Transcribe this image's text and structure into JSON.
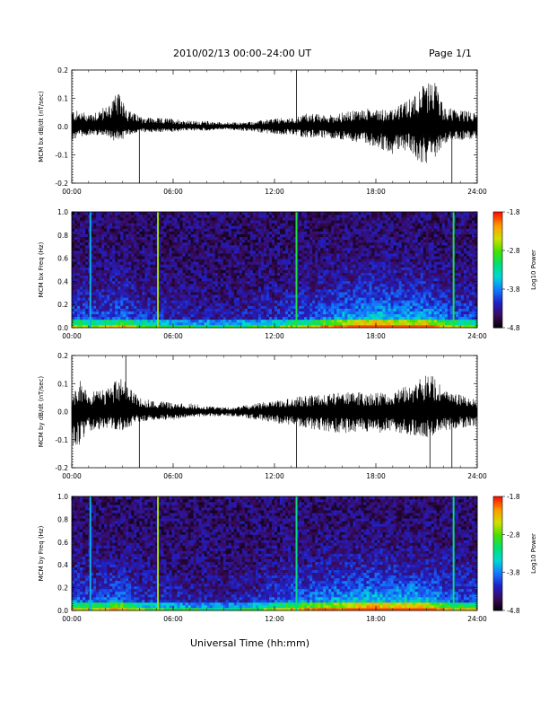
{
  "header": {
    "title": "2010/02/13  00:00–24:00 UT",
    "page": "Page 1/1"
  },
  "footer": {
    "xlabel": "Universal Time (hh:mm)"
  },
  "colors": {
    "trace": "#000000",
    "colorbar_stops": [
      "#000000",
      "#3a0a5a",
      "#2020c8",
      "#1478ff",
      "#00d7d7",
      "#00e070",
      "#48e000",
      "#d0e000",
      "#ff9a00",
      "#ff1000"
    ]
  },
  "chart_data": [
    {
      "type": "line",
      "ylabel": "MCM bx dB/dt (nT/sec)",
      "xticks": [
        "00:00",
        "06:00",
        "12:00",
        "18:00",
        "24:00"
      ],
      "xlim": [
        0,
        24
      ],
      "ylim": [
        -0.2,
        0.2
      ],
      "yticks": [
        "-0.2",
        "-0.1",
        "0.0",
        "0.1",
        "0.2"
      ],
      "envelope": {
        "x": [
          0,
          1,
          2,
          2.5,
          3,
          3.3,
          4,
          5,
          6,
          7,
          8,
          9,
          10,
          11,
          12,
          13,
          14,
          15,
          16,
          17,
          18,
          19,
          20,
          20.5,
          21,
          21.5,
          22,
          23,
          24
        ],
        "upper": [
          0.06,
          0.05,
          0.07,
          0.11,
          0.12,
          0.06,
          0.04,
          0.03,
          0.03,
          0.02,
          0.02,
          0.015,
          0.015,
          0.02,
          0.03,
          0.03,
          0.05,
          0.04,
          0.05,
          0.06,
          0.07,
          0.06,
          0.1,
          0.14,
          0.15,
          0.17,
          0.07,
          0.06,
          0.05
        ],
        "lower": [
          -0.05,
          -0.03,
          -0.03,
          -0.05,
          -0.05,
          -0.03,
          -0.02,
          -0.02,
          -0.02,
          -0.015,
          -0.015,
          -0.01,
          -0.015,
          -0.02,
          -0.03,
          -0.03,
          -0.04,
          -0.04,
          -0.05,
          -0.06,
          -0.07,
          -0.1,
          -0.08,
          -0.12,
          -0.14,
          -0.12,
          -0.06,
          -0.05,
          -0.04
        ]
      },
      "spikes": [
        {
          "x": 4.0,
          "y": -0.2
        },
        {
          "x": 13.3,
          "y": 0.2
        },
        {
          "x": 22.5,
          "y": -0.2
        }
      ]
    },
    {
      "type": "heatmap",
      "ylabel": "MCM bx Freq (Hz)",
      "xticks": [
        "00:00",
        "06:00",
        "12:00",
        "18:00",
        "24:00"
      ],
      "xlim": [
        0,
        24
      ],
      "ylim": [
        0.0,
        1.0
      ],
      "yticks": [
        "0.0",
        "0.2",
        "0.4",
        "0.6",
        "0.8",
        "1.0"
      ],
      "colorbar": {
        "label": "Log10 Power",
        "min": -4.8,
        "max": -1.8,
        "ticks": [
          "-1.8",
          "-2.8",
          "-3.8",
          "-4.8"
        ]
      },
      "stripes": [
        {
          "x": 5.1,
          "level": -2.6
        },
        {
          "x": 13.3,
          "level": -3.0
        },
        {
          "x": 22.6,
          "level": -3.0
        },
        {
          "x": 1.1,
          "level": -3.6
        }
      ],
      "activity": {
        "x": [
          0,
          1,
          2,
          3,
          4,
          5,
          6,
          7,
          8,
          9,
          10,
          11,
          12,
          13,
          14,
          15,
          16,
          17,
          18,
          19,
          20,
          21,
          22,
          23,
          24
        ],
        "level": [
          0.5,
          0.4,
          0.45,
          0.55,
          0.35,
          0.3,
          0.25,
          0.2,
          0.2,
          0.18,
          0.2,
          0.25,
          0.3,
          0.4,
          0.45,
          0.6,
          0.7,
          0.8,
          0.85,
          0.8,
          0.75,
          0.8,
          0.55,
          0.45,
          0.4
        ]
      }
    },
    {
      "type": "line",
      "ylabel": "MCM by dB/dt (nT/sec)",
      "xticks": [
        "00:00",
        "06:00",
        "12:00",
        "18:00",
        "24:00"
      ],
      "xlim": [
        0,
        24
      ],
      "ylim": [
        -0.2,
        0.2
      ],
      "yticks": [
        "-0.2",
        "-0.1",
        "0.0",
        "0.1",
        "0.2"
      ],
      "envelope": {
        "x": [
          0,
          0.5,
          1,
          2,
          3,
          3.3,
          4,
          5,
          6,
          7,
          8,
          9,
          10,
          11,
          12,
          13,
          14,
          15,
          16,
          17,
          18,
          19,
          20,
          21,
          21.5,
          22,
          23,
          24
        ],
        "upper": [
          0.06,
          0.12,
          0.08,
          0.08,
          0.13,
          0.09,
          0.05,
          0.04,
          0.03,
          0.03,
          0.02,
          0.015,
          0.02,
          0.03,
          0.04,
          0.05,
          0.06,
          0.06,
          0.07,
          0.07,
          0.07,
          0.08,
          0.1,
          0.14,
          0.12,
          0.08,
          0.06,
          0.05
        ],
        "lower": [
          -0.14,
          -0.12,
          -0.07,
          -0.06,
          -0.07,
          -0.06,
          -0.04,
          -0.03,
          -0.03,
          -0.02,
          -0.02,
          -0.015,
          -0.02,
          -0.03,
          -0.04,
          -0.05,
          -0.06,
          -0.07,
          -0.08,
          -0.07,
          -0.08,
          -0.07,
          -0.09,
          -0.1,
          -0.08,
          -0.07,
          -0.06,
          -0.05
        ]
      },
      "spikes": [
        {
          "x": 3.2,
          "y": 0.2
        },
        {
          "x": 4.0,
          "y": -0.2
        },
        {
          "x": 13.3,
          "y": -0.2
        },
        {
          "x": 21.2,
          "y": -0.2
        },
        {
          "x": 22.5,
          "y": -0.2
        }
      ]
    },
    {
      "type": "heatmap",
      "ylabel": "MCM by Freq (Hz)",
      "xticks": [
        "00:00",
        "06:00",
        "12:00",
        "18:00",
        "24:00"
      ],
      "xlim": [
        0,
        24
      ],
      "ylim": [
        0.0,
        1.0
      ],
      "yticks": [
        "0.0",
        "0.2",
        "0.4",
        "0.6",
        "0.8",
        "1.0"
      ],
      "colorbar": {
        "label": "Log10 Power",
        "min": -4.8,
        "max": -1.8,
        "ticks": [
          "-1.8",
          "-2.8",
          "-3.8",
          "-4.8"
        ]
      },
      "stripes": [
        {
          "x": 5.1,
          "level": -2.6
        },
        {
          "x": 13.3,
          "level": -3.2
        },
        {
          "x": 22.6,
          "level": -3.2
        },
        {
          "x": 1.1,
          "level": -3.6
        }
      ],
      "activity": {
        "x": [
          0,
          1,
          2,
          3,
          4,
          5,
          6,
          7,
          8,
          9,
          10,
          11,
          12,
          13,
          14,
          15,
          16,
          17,
          18,
          19,
          20,
          21,
          22,
          23,
          24
        ],
        "level": [
          0.55,
          0.45,
          0.5,
          0.6,
          0.35,
          0.3,
          0.25,
          0.2,
          0.2,
          0.18,
          0.22,
          0.28,
          0.45,
          0.55,
          0.6,
          0.7,
          0.75,
          0.85,
          0.85,
          0.8,
          0.85,
          0.8,
          0.6,
          0.5,
          0.45
        ]
      }
    }
  ]
}
